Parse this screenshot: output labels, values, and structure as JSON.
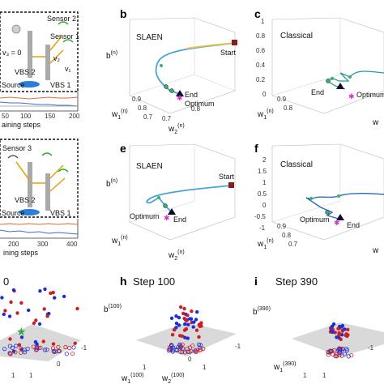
{
  "panels": {
    "a": {
      "diagram_labels": [
        "Sensor 2",
        "Sensor 1",
        "VBS 2",
        "VBS 1",
        "Source"
      ],
      "nu_label": "v₃ = 0",
      "v_labels": [
        "v₂",
        "v₁"
      ],
      "x_ticks": [
        "50",
        "100",
        "150",
        "200"
      ],
      "x_label": "aining steps"
    },
    "b": {
      "letter": "b",
      "method": "SLAEN",
      "start": "Start",
      "end": "End",
      "optimum": "Optimum",
      "ylab": "b",
      "ysup": "(n)",
      "xlab1": "w",
      "xsub1": "1",
      "xsup1": "(n)",
      "xlab2": "w",
      "xsub2": "2",
      "xsup2": "(n)",
      "ticks": [
        "0.9",
        "0.8",
        "0.7",
        "0.7",
        "0.8"
      ]
    },
    "c": {
      "letter": "c",
      "method": "Classical",
      "end": "End",
      "optimum": "Optimum",
      "yticks": [
        "1",
        "0.8",
        "0.6",
        "0.4",
        "0.2",
        "0"
      ],
      "xticks": [
        "0.9",
        "0.8"
      ]
    },
    "d": {
      "diagram_labels": [
        "Sensor 3",
        "VBS 2",
        "VBS 1",
        "Source"
      ],
      "x_ticks": [
        "200",
        "300",
        "400"
      ],
      "x_label": "ining steps"
    },
    "e": {
      "letter": "e",
      "method": "SLAEN",
      "start": "Start",
      "end": "End",
      "optimum": "Optimum",
      "ylab": "b",
      "ysup": "(n)",
      "xlab1": "w",
      "xsub1": "1",
      "xsup1": "(n)",
      "xlab2": "w",
      "xsub2": "2",
      "xsup2": "(n)"
    },
    "f": {
      "letter": "f",
      "method": "Classical",
      "end": "End",
      "optimum": "Optimum",
      "yticks": [
        "2",
        "1.5",
        "1",
        "0.5",
        "0",
        "-0.5",
        "-1"
      ],
      "xticks": [
        "0.9",
        "0.8",
        "0.7"
      ]
    },
    "g": {
      "title": "0",
      "ticks": [
        "-1",
        "0",
        "1",
        "1",
        "0",
        "-1"
      ]
    },
    "h": {
      "letter": "h",
      "title": "Step 100",
      "ylab": "b",
      "ysup": "(100)",
      "xlab1": "w",
      "xsub1": "1",
      "xsup1": "(100)",
      "xlab2": "w",
      "xsub2": "2",
      "xsup2": "(100)",
      "ticks": [
        "-1",
        "1",
        "1",
        "0",
        "0",
        "-1"
      ]
    },
    "i": {
      "letter": "i",
      "title": "Step 390",
      "ylab": "b",
      "ysup": "(390)",
      "xlab1": "w",
      "xsub1": "1",
      "xsup1": "(390)",
      "ticks": [
        "-1",
        "1",
        "1",
        "0"
      ]
    }
  },
  "colors": {
    "red": "#cc1f1f",
    "blue": "#1c2fd6",
    "plane": "#d9d9d9",
    "optimum": "#d62fd6",
    "end": "#0a0a2a",
    "start": "#8b1a1a"
  }
}
